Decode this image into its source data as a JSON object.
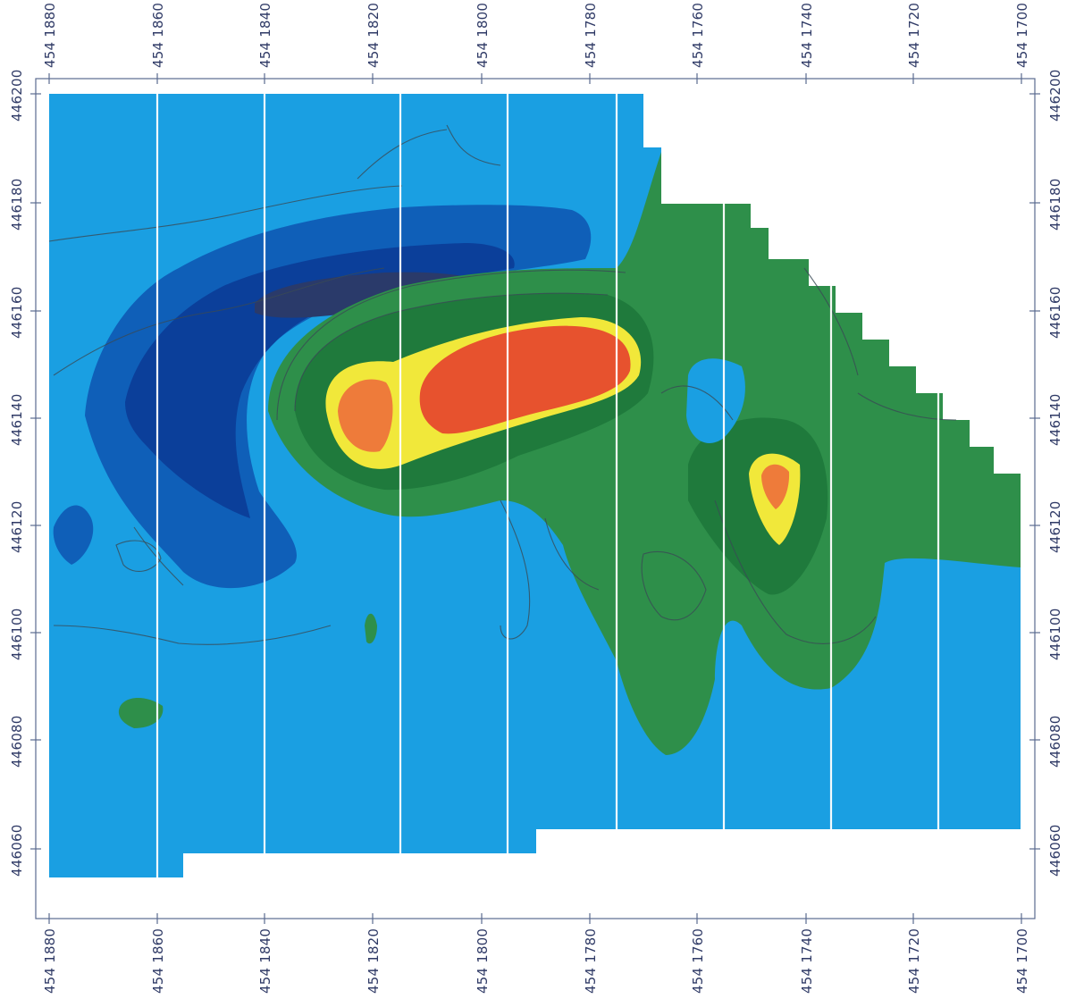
{
  "map": {
    "top_axis_ticks": [
      "454 1880",
      "454 1860",
      "454 1840",
      "454 1820",
      "454 1800",
      "454 1780",
      "454 1760",
      "454 1740",
      "454 1720",
      "454 1700"
    ],
    "bottom_axis_ticks": [
      "454 1880",
      "454 1860",
      "454 1840",
      "454 1820",
      "454 1800",
      "454 1780",
      "454 1760",
      "454 1740",
      "454 1720",
      "454 1700"
    ],
    "left_axis_ticks": [
      "446200",
      "446180",
      "446160",
      "446140",
      "446120",
      "446100",
      "446080",
      "446060"
    ],
    "right_axis_ticks": [
      "446200",
      "446180",
      "446160",
      "446140",
      "446120",
      "446100",
      "446080",
      "446060"
    ],
    "colors": {
      "background_field": "#1a9fe2",
      "low_1": "#0f5fb8",
      "low_2": "#0b3f9a",
      "low_3": "#2a3a6a",
      "mid_1": "#2e8f4a",
      "mid_2": "#1f7a3c",
      "high_1": "#f1e83a",
      "high_2": "#ee7b3a",
      "high_3": "#e7522e"
    }
  }
}
